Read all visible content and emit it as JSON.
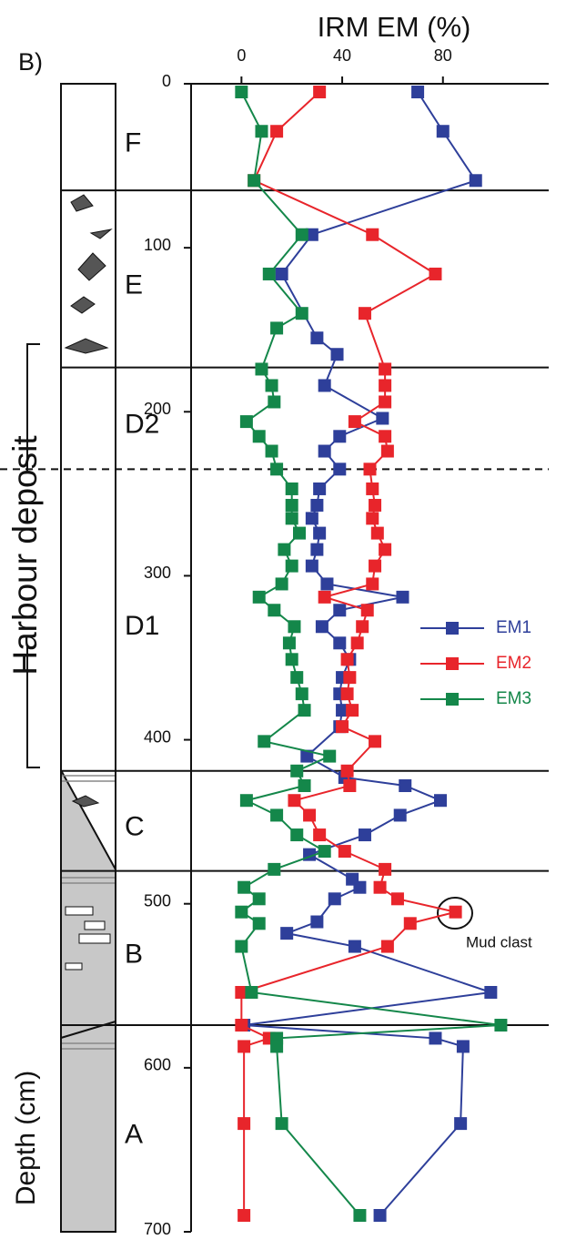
{
  "chart_data": {
    "type": "line",
    "title": "IRM EM (%)",
    "panel_label": "B)",
    "y_label": "Depth (cm)",
    "group_label": "Harbour deposit",
    "annotation": "Mud clast",
    "xlim": [
      -20,
      122
    ],
    "xticks": [
      0,
      40,
      80
    ],
    "ylim": [
      0,
      700
    ],
    "yticks": [
      0,
      100,
      200,
      300,
      400,
      500,
      600,
      700
    ],
    "y_inverted": true,
    "zones": [
      {
        "name": "F",
        "top": 0
      },
      {
        "name": "E",
        "top": 65
      },
      {
        "name": "D2",
        "top": 173
      },
      {
        "name": "D1",
        "top": 235,
        "dashed": true
      },
      {
        "name": "C",
        "top": 419
      },
      {
        "name": "B",
        "top": 480
      },
      {
        "name": "A",
        "top": 574
      }
    ],
    "series": [
      {
        "name": "EM1",
        "color": "#2e3f9a",
        "depth": [
          5,
          29,
          59,
          92,
          116,
          155,
          165,
          184,
          204,
          215,
          224,
          235,
          247,
          257,
          265,
          274,
          284,
          294,
          305,
          313,
          321,
          331,
          341,
          351,
          362,
          372,
          382,
          392,
          410,
          423,
          428,
          437,
          446,
          458,
          470,
          485,
          490,
          497,
          511,
          518,
          526,
          554,
          574,
          582,
          587,
          634,
          690
        ],
        "values": [
          70,
          80,
          93,
          28,
          16,
          30,
          38,
          33,
          56,
          39,
          33,
          39,
          31,
          30,
          28,
          31,
          30,
          28,
          34,
          64,
          39,
          32,
          39,
          43,
          40,
          39,
          40,
          39,
          26,
          41,
          65,
          79,
          63,
          49,
          27,
          44,
          47,
          37,
          30,
          18,
          45,
          99,
          1,
          77,
          88,
          87,
          55
        ]
      },
      {
        "name": "EM2",
        "color": "#e8252b",
        "depth": [
          5,
          29,
          59,
          92,
          116,
          140,
          174,
          184,
          194,
          206,
          215,
          224,
          235,
          247,
          257,
          265,
          274,
          284,
          294,
          305,
          313,
          321,
          331,
          341,
          351,
          362,
          372,
          382,
          392,
          401,
          419,
          428,
          437,
          446,
          458,
          468,
          479,
          490,
          497,
          505,
          512,
          526,
          554,
          574,
          582,
          587,
          634,
          690
        ],
        "values": [
          31,
          14,
          5,
          52,
          77,
          49,
          57,
          57,
          57,
          45,
          57,
          58,
          51,
          52,
          53,
          52,
          54,
          57,
          53,
          52,
          33,
          50,
          48,
          46,
          42,
          43,
          42,
          44,
          40,
          53,
          42,
          43,
          21,
          27,
          31,
          41,
          57,
          55,
          62,
          85,
          67,
          58,
          0,
          0,
          11,
          1,
          1,
          1
        ]
      },
      {
        "name": "EM3",
        "color": "#14874a",
        "depth": [
          5,
          29,
          59,
          92,
          116,
          140,
          149,
          174,
          184,
          194,
          206,
          215,
          224,
          235,
          247,
          257,
          265,
          274,
          284,
          294,
          305,
          313,
          321,
          331,
          341,
          351,
          362,
          372,
          382,
          401,
          410,
          419,
          428,
          437,
          446,
          458,
          468,
          479,
          490,
          497,
          505,
          512,
          526,
          554,
          574,
          582,
          587,
          634,
          690
        ],
        "values": [
          0,
          8,
          5,
          24,
          11,
          24,
          14,
          8,
          12,
          13,
          2,
          7,
          12,
          14,
          20,
          20,
          20,
          23,
          17,
          20,
          16,
          7,
          13,
          21,
          19,
          20,
          22,
          24,
          25,
          9,
          35,
          22,
          25,
          2,
          14,
          22,
          33,
          13,
          1,
          7,
          0,
          7,
          0,
          4,
          103,
          14,
          14,
          16,
          47
        ]
      }
    ]
  }
}
